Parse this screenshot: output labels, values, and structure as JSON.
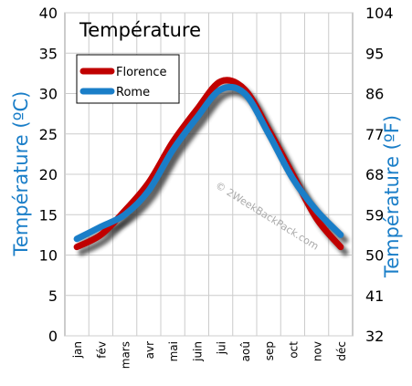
{
  "chart_data": {
    "type": "line",
    "title": "Température",
    "ylabel_left": "Température (ºC)",
    "ylabel_right": "Température (ºF)",
    "categories": [
      "jan",
      "fév",
      "mars",
      "avr",
      "mai",
      "juin",
      "jui",
      "aoû",
      "sep",
      "oct",
      "nov",
      "déc"
    ],
    "ylim": [
      0,
      40
    ],
    "y_ticks": [
      0,
      5,
      10,
      15,
      20,
      25,
      30,
      35,
      40
    ],
    "y2_ticks": [
      32,
      41,
      50,
      59,
      68,
      77,
      86,
      95,
      104
    ],
    "grid": true,
    "legend_position": "top-left",
    "series": [
      {
        "name": "Florence",
        "color": "#c00000",
        "values": [
          11,
          12.5,
          15.5,
          19,
          24,
          28,
          31.5,
          30.5,
          25.5,
          20,
          14.5,
          11
        ]
      },
      {
        "name": "Rome",
        "color": "#1a7ec8",
        "values": [
          12,
          13.5,
          15,
          18,
          23,
          27,
          30.5,
          30,
          25,
          19.5,
          15.5,
          12.5
        ]
      }
    ],
    "annotation": "© 2WeekBackPack.com"
  },
  "colors": {
    "axis_label": "#1a7ec8",
    "shadow": "#333333",
    "grid": "#cccccc"
  }
}
